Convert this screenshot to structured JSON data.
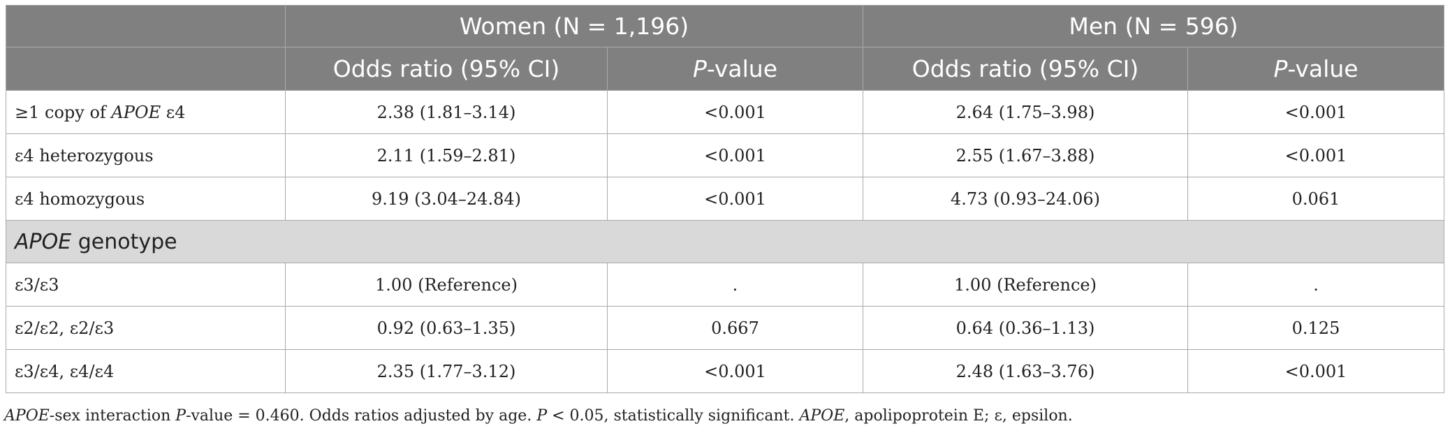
{
  "table": {
    "groups": [
      {
        "label": "Women (N = 1,196)"
      },
      {
        "label": "Men (N = 596)"
      }
    ],
    "subheaders": {
      "or": "Odds ratio (95% CI)",
      "p_italic": "P",
      "p_suffix": "-value"
    },
    "rows_top": [
      {
        "pre": "≥1 copy of ",
        "ital": "APOE",
        "post": " ε4",
        "w_or": "2.38 (1.81–3.14)",
        "w_p": "<0.001",
        "m_or": "2.64 (1.75–3.98)",
        "m_p": "<0.001"
      },
      {
        "pre": "ε4 heterozygous",
        "ital": "",
        "post": "",
        "w_or": "2.11 (1.59–2.81)",
        "w_p": "<0.001",
        "m_or": "2.55 (1.67–3.88)",
        "m_p": "<0.001"
      },
      {
        "pre": "ε4 homozygous",
        "ital": "",
        "post": "",
        "w_or": "9.19 (3.04–24.84)",
        "w_p": "<0.001",
        "m_or": "4.73 (0.93–24.06)",
        "m_p": "0.061"
      }
    ],
    "section": {
      "ital": "APOE",
      "text": " genotype"
    },
    "rows_bottom": [
      {
        "pre": "ε3/ε3",
        "ital": "",
        "post": "",
        "w_or": "1.00 (Reference)",
        "w_p": ".",
        "m_or": "1.00 (Reference)",
        "m_p": "."
      },
      {
        "pre": "ε2/ε2, ε2/ε3",
        "ital": "",
        "post": "",
        "w_or": "0.92 (0.63–1.35)",
        "w_p": "0.667",
        "m_or": "0.64 (0.36–1.13)",
        "m_p": "0.125"
      },
      {
        "pre": "ε3/ε4, ε4/ε4",
        "ital": "",
        "post": "",
        "w_or": "2.35 (1.77–3.12)",
        "w_p": "<0.001",
        "m_or": "2.48 (1.63–3.76)",
        "m_p": "<0.001"
      }
    ]
  },
  "footnote": {
    "a_ital": "APOE",
    "b": "-sex interaction ",
    "c_ital": "P",
    "d": "-value = 0.460. Odds ratios adjusted by age. ",
    "e_ital": "P",
    "f": " < 0.05, statistically significant. ",
    "g_ital": "APOE",
    "h": ", apolipoprotein E; ε, epsilon."
  }
}
